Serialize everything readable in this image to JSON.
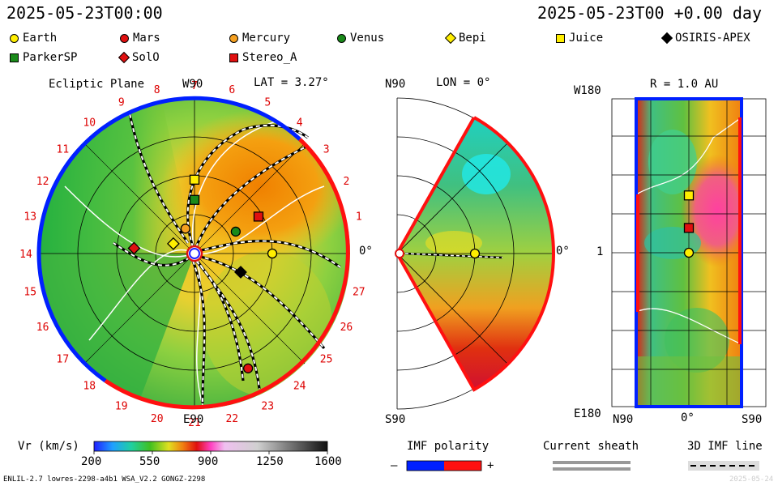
{
  "header": {
    "left_time": "2025-05-23T00:00",
    "right_time": "2025-05-23T00 +0.00 day"
  },
  "legend": [
    {
      "name": "Earth",
      "shape": "circle",
      "color": "#ffee00"
    },
    {
      "name": "Mars",
      "shape": "circle",
      "color": "#e01010"
    },
    {
      "name": "Mercury",
      "shape": "circle",
      "color": "#f5a020"
    },
    {
      "name": "Venus",
      "shape": "circle",
      "color": "#1a8a1a"
    },
    {
      "name": "Bepi",
      "shape": "diamond",
      "color": "#ffee00"
    },
    {
      "name": "Juice",
      "shape": "square",
      "color": "#ffee00"
    },
    {
      "name": "OSIRIS-APEX",
      "shape": "diamond",
      "color": "#000000"
    },
    {
      "name": "ParkerSP",
      "shape": "square",
      "color": "#1a8a1a"
    },
    {
      "name": "SolO",
      "shape": "diamond",
      "color": "#e01010"
    },
    {
      "name": "Stereo_A",
      "shape": "square",
      "color": "#e01010"
    }
  ],
  "panels": {
    "ecliptic": {
      "title": "Ecliptic Plane",
      "lat": "LAT = 3.27°",
      "top_label": "W90",
      "bottom_label": "E90",
      "right_label": "0°"
    },
    "meridional": {
      "top_label": "N90",
      "lon": "LON = 0°",
      "bottom_label": "S90",
      "right_label": "0°"
    },
    "radial": {
      "r": "R = 1.0 AU",
      "top_left": "W180",
      "mid_left": "1",
      "bottom_left": "E180",
      "bottom_l": "N90",
      "bottom_c": "0°",
      "bottom_r": "S90"
    }
  },
  "chart_data": [
    {
      "type": "heatmap",
      "title": "Ecliptic Plane",
      "carrington_longitudes": [
        1,
        2,
        3,
        4,
        5,
        6,
        7,
        8,
        9,
        10,
        11,
        12,
        13,
        14,
        15,
        16,
        17,
        18,
        19,
        20,
        21,
        22,
        23,
        24,
        25,
        26,
        27
      ],
      "bodies_polar": [
        {
          "name": "Earth",
          "r_au": 1.0,
          "angle_deg": 0
        },
        {
          "name": "Mercury",
          "r_au": 0.34,
          "angle_deg": 110
        },
        {
          "name": "Venus",
          "r_au": 0.6,
          "angle_deg": 28
        },
        {
          "name": "Mars",
          "r_au": 1.63,
          "angle_deg": -65
        },
        {
          "name": "Bepi",
          "r_au": 0.3,
          "angle_deg": 155
        },
        {
          "name": "Juice",
          "r_au": 0.95,
          "angle_deg": 90
        },
        {
          "name": "ParkerSP",
          "r_au": 0.69,
          "angle_deg": 90
        },
        {
          "name": "SolO",
          "r_au": 0.78,
          "angle_deg": 175
        },
        {
          "name": "Stereo_A",
          "r_au": 0.95,
          "angle_deg": 30
        },
        {
          "name": "OSIRIS-APEX",
          "r_au": 0.64,
          "angle_deg": -22
        }
      ]
    },
    {
      "type": "heatmap",
      "title": "Meridional plane",
      "bodies_polar": [
        {
          "name": "Earth",
          "r_au": 1.0,
          "angle_deg": 0
        }
      ]
    },
    {
      "type": "heatmap",
      "title": "R = 1.0 AU",
      "bodies_map": [
        {
          "name": "Juice",
          "lat_deg": 0,
          "lon_deg": 67
        },
        {
          "name": "Stereo_A",
          "lat_deg": 0,
          "lon_deg": 29
        },
        {
          "name": "Earth",
          "lat_deg": 0,
          "lon_deg": 0
        }
      ]
    }
  ],
  "colorbar": {
    "label": "Vr (km/s)",
    "ticks": [
      "200",
      "550",
      "900",
      "1250",
      "1600"
    ]
  },
  "imf": {
    "label": "IMF polarity",
    "minus": "–",
    "plus": "+",
    "neg_color": "#0000ff",
    "pos_color": "#ff0000"
  },
  "sheath": {
    "label": "Current sheath"
  },
  "imf3d": {
    "label": "3D IMF line"
  },
  "footer": {
    "left": "ENLIL-2.7 lowres-2298-a4b1 WSA_V2.2 GONGZ-2298",
    "right": "2025-05-24"
  }
}
